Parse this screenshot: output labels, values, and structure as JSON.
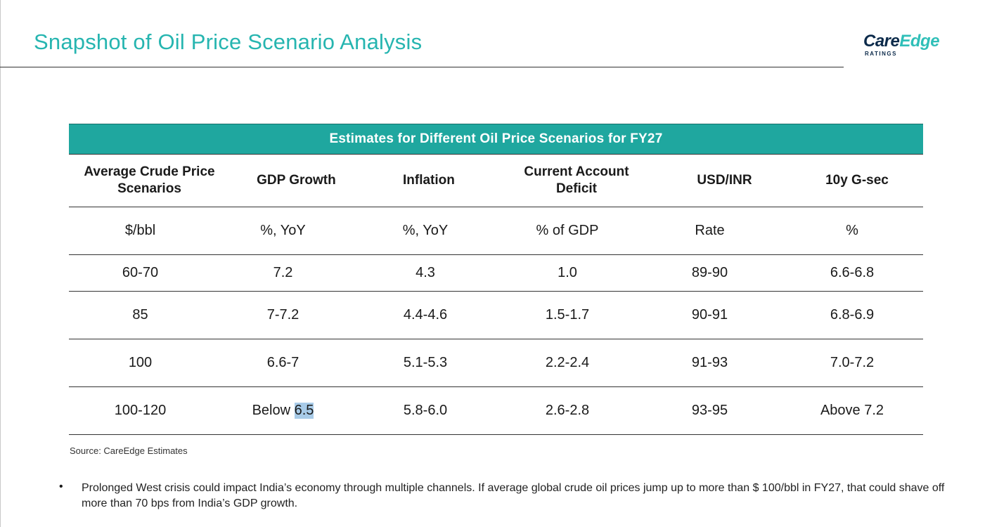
{
  "header": {
    "title": "Snapshot of Oil Price Scenario Analysis",
    "logo_care": "Care",
    "logo_edge": "Edge",
    "logo_sub": "RATINGS"
  },
  "table": {
    "banner": "Estimates for Different Oil Price Scenarios for FY27",
    "columns": [
      "Average Crude Price Scenarios",
      "GDP Growth",
      "Inflation",
      "Current Account Deficit",
      "USD/INR",
      "10y G-sec"
    ],
    "units": [
      "$/bbl",
      "%, YoY",
      "%, YoY",
      "% of GDP",
      "Rate",
      "%"
    ],
    "rows": [
      [
        "60-70",
        "7.2",
        "4.3",
        "1.0",
        "89-90",
        "6.6-6.8"
      ],
      [
        "85",
        "7-7.2",
        "4.4-4.6",
        "1.5-1.7",
        "90-91",
        "6.8-6.9"
      ],
      [
        "100",
        "6.6-7",
        "5.1-5.3",
        "2.2-2.4",
        "91-93",
        "7.0-7.2"
      ],
      [
        "100-120",
        "Below 6.5",
        "5.8-6.0",
        "2.6-2.8",
        "93-95",
        "Above 7.2"
      ]
    ],
    "highlight": {
      "prefix": "Below ",
      "selected": "6.5"
    }
  },
  "source": "Source: CareEdge Estimates",
  "bullet": {
    "symbol": "•",
    "text": "Prolonged West crisis could impact India’s economy through multiple channels. If average global crude oil prices jump up to more than $ 100/bbl in FY27, that could shave off more than 70 bps from India’s GDP growth."
  },
  "colors": {
    "accent": "#26b5b0",
    "banner": "#1fa79f",
    "selection": "#a8cbe8"
  }
}
